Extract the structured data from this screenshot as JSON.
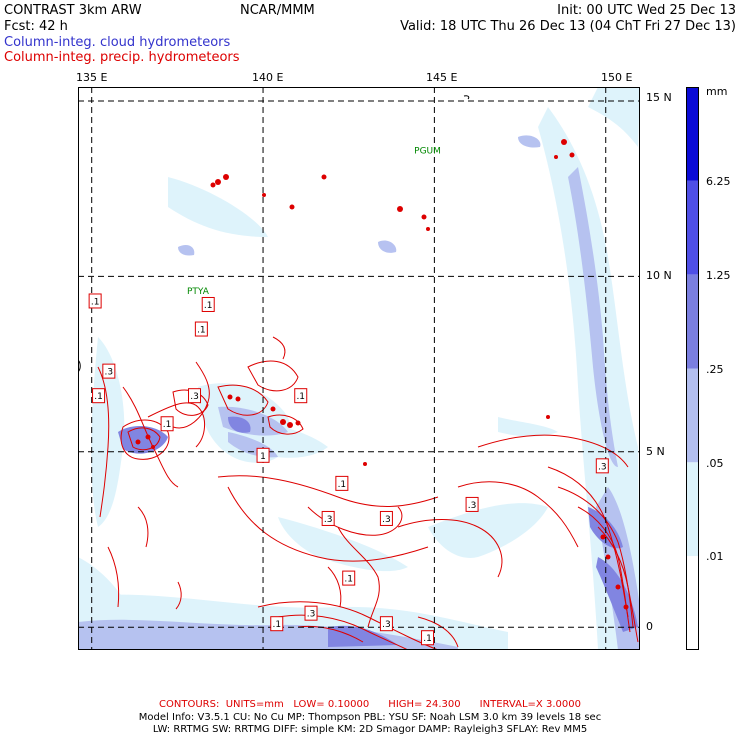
{
  "header": {
    "model": "CONTRAST  3km ARW",
    "institution": "NCAR/MMM",
    "init": "Init: 00 UTC Wed 25 Dec 13",
    "fcst": "Fcst:   42 h",
    "valid": "Valid: 18 UTC Thu 26 Dec 13 (04 ChT Fri 27 Dec 13)"
  },
  "legend": {
    "shaded_field": "Column-integ. cloud hydrometeors",
    "contour_field": "Column-integ. precip. hydrometeors"
  },
  "map": {
    "lon_labels": [
      "135 E",
      "140 E",
      "145 E",
      "150 E"
    ],
    "lon_values": [
      135,
      140,
      145,
      150
    ],
    "lat_labels": [
      "15 N",
      "10 N",
      "5 N",
      "0"
    ],
    "lat_values": [
      15,
      10,
      5,
      0
    ],
    "lon_range": [
      134.6,
      151.0
    ],
    "lat_range": [
      -0.65,
      15.4
    ],
    "places": [
      {
        "name": "PGUM",
        "lon": 144.8,
        "lat": 13.5
      },
      {
        "name": "PTYA",
        "lon": 138.1,
        "lat": 9.5
      }
    ],
    "contour_labels": [
      {
        "text": ".1",
        "lon": 135.1,
        "lat": 9.3
      },
      {
        "text": ".1",
        "lon": 138.4,
        "lat": 9.2
      },
      {
        "text": ".1",
        "lon": 138.2,
        "lat": 8.5
      },
      {
        "text": ".3",
        "lon": 135.5,
        "lat": 7.3
      },
      {
        "text": ".1",
        "lon": 135.2,
        "lat": 6.6
      },
      {
        "text": ".3",
        "lon": 138.0,
        "lat": 6.6
      },
      {
        "text": ".1",
        "lon": 141.1,
        "lat": 6.6
      },
      {
        "text": ".1",
        "lon": 137.2,
        "lat": 5.8
      },
      {
        "text": ".3",
        "lon": 149.9,
        "lat": 4.6
      },
      {
        "text": "1",
        "lon": 140.0,
        "lat": 4.9
      },
      {
        "text": ".1",
        "lon": 142.3,
        "lat": 4.1
      },
      {
        "text": ".3",
        "lon": 146.1,
        "lat": 3.5
      },
      {
        "text": ".3",
        "lon": 141.9,
        "lat": 3.1
      },
      {
        "text": ".3",
        "lon": 143.6,
        "lat": 3.1
      },
      {
        "text": ".1",
        "lon": 142.5,
        "lat": 1.4
      },
      {
        "text": ".3",
        "lon": 141.4,
        "lat": 0.4
      },
      {
        "text": ".1",
        "lon": 140.4,
        "lat": 0.1
      },
      {
        "text": ".3",
        "lon": 143.6,
        "lat": 0.1
      },
      {
        "text": ".1",
        "lon": 144.8,
        "lat": -0.3
      }
    ],
    "colors": {
      "cloud_light": "#ddf3fb",
      "cloud_medium": "#b3bff0",
      "cloud_strong": "#7b7fe0",
      "precip_contour": "#dd0000",
      "grid": "#000000",
      "places": "#008800"
    }
  },
  "colorbar": {
    "units": "mm",
    "labels": [
      "6.25",
      "1.25",
      ".25",
      ".05",
      ".01"
    ],
    "levels": [
      0.01,
      0.05,
      0.25,
      1.25,
      6.25
    ],
    "colors": [
      "#ffffff",
      "#ddf3fb",
      "#b3bff0",
      "#7b7fe0",
      "#4f4fe6",
      "#0b0bd6"
    ]
  },
  "footer": {
    "contours_label": "CONTOURS:",
    "units": "UNITS=mm",
    "low": "LOW= 0.10000",
    "high": "HIGH= 24.300",
    "interval": "INTERVAL=X  3.0000",
    "line1": "Model Info: V3.5.1     CU: No Cu     MP: Thompson     PBL: YSU     SF: Noah LSM     3.0 km   39 levels    18 sec",
    "line2": "LW: RRTMG    SW: RRTMG   DIFF: simple KM: 2D Smagor DAMP: Rayleigh3   SFLAY: Rev MM5"
  }
}
